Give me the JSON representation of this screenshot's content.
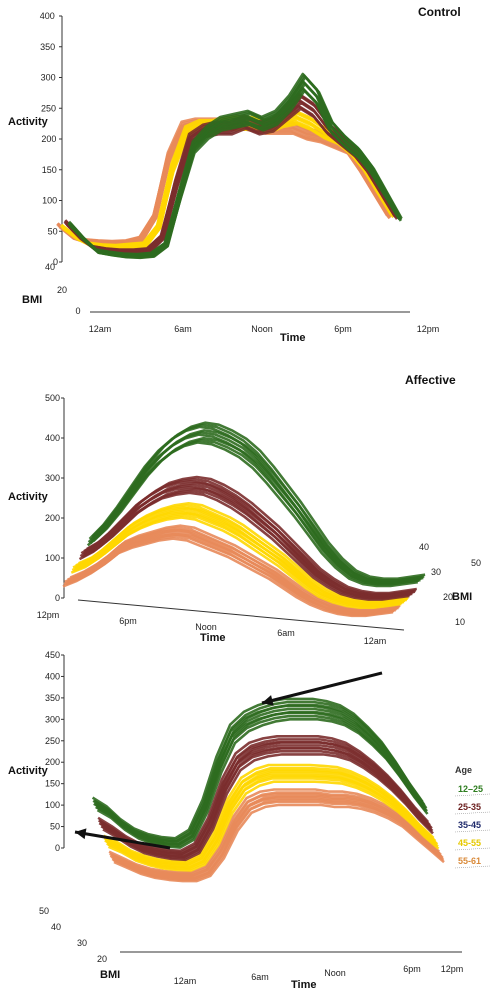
{
  "chart_data": [
    {
      "type": "line",
      "title": "Control",
      "ylabel": "Activity",
      "xlabel": "Time",
      "zlabel": "BMI",
      "ylim": [
        0,
        400
      ],
      "yticks": [
        "0",
        "50",
        "100",
        "150",
        "200",
        "250",
        "300",
        "350",
        "400"
      ],
      "xticks": [
        "12am",
        "6am",
        "Noon",
        "6pm",
        "12pm"
      ],
      "zticks": [
        "0",
        "20",
        "40"
      ],
      "x": [
        0,
        1,
        2,
        3,
        4,
        5,
        6,
        7,
        8,
        9,
        10,
        11,
        12,
        13,
        14,
        15,
        16,
        17,
        18,
        19,
        20,
        21,
        22,
        23,
        24
      ],
      "series": [
        {
          "color": "#e8895a",
          "values": [
            35,
            15,
            8,
            6,
            5,
            6,
            12,
            50,
            150,
            200,
            205,
            205,
            205,
            210,
            205,
            200,
            200,
            200,
            190,
            185,
            175,
            165,
            130,
            90,
            50
          ]
        },
        {
          "color": "#ffd700",
          "values": [
            40,
            22,
            10,
            7,
            6,
            8,
            10,
            40,
            140,
            200,
            210,
            210,
            215,
            215,
            215,
            210,
            220,
            225,
            215,
            200,
            190,
            170,
            140,
            100,
            60
          ]
        },
        {
          "color": "#7b2e2e",
          "values": [
            55,
            30,
            12,
            8,
            6,
            6,
            8,
            30,
            120,
            195,
            210,
            215,
            215,
            225,
            215,
            220,
            240,
            260,
            245,
            215,
            195,
            175,
            145,
            105,
            65
          ]
        },
        {
          "color": "#2e6b1f",
          "values": [
            60,
            35,
            14,
            10,
            7,
            6,
            8,
            25,
            110,
            190,
            215,
            230,
            235,
            240,
            230,
            240,
            265,
            300,
            275,
            225,
            200,
            180,
            150,
            110,
            70
          ]
        }
      ]
    },
    {
      "type": "line",
      "title": "Affective",
      "ylabel": "Activity",
      "xlabel": "Time",
      "zlabel": "BMI",
      "ylim": [
        0,
        500
      ],
      "yticks": [
        "0",
        "100",
        "200",
        "300",
        "400",
        "500"
      ],
      "xticks": [
        "12pm",
        "6pm",
        "Noon",
        "6am",
        "12am"
      ],
      "zticks": [
        "10",
        "20",
        "30",
        "40",
        "50"
      ],
      "x": [
        0,
        1,
        2,
        3,
        4,
        5,
        6,
        7,
        8,
        9,
        10,
        11,
        12,
        13,
        14,
        15,
        16,
        17,
        18,
        19,
        20,
        21,
        22,
        23,
        24
      ],
      "series": [
        {
          "color": "#e8895a",
          "values": [
            100,
            115,
            135,
            160,
            190,
            205,
            215,
            225,
            230,
            225,
            210,
            195,
            180,
            160,
            140,
            120,
            95,
            70,
            50,
            35,
            25,
            20,
            20,
            25,
            30
          ]
        },
        {
          "color": "#ffd700",
          "values": [
            120,
            135,
            160,
            190,
            220,
            240,
            255,
            265,
            270,
            265,
            250,
            235,
            215,
            190,
            165,
            140,
            110,
            80,
            55,
            40,
            30,
            25,
            25,
            30,
            35
          ]
        },
        {
          "color": "#7b2e2e",
          "values": [
            140,
            160,
            190,
            225,
            260,
            285,
            305,
            315,
            320,
            315,
            300,
            280,
            255,
            225,
            195,
            160,
            125,
            90,
            65,
            45,
            35,
            30,
            30,
            35,
            40
          ]
        },
        {
          "color": "#2e6b1f",
          "values": [
            160,
            195,
            240,
            290,
            340,
            380,
            410,
            430,
            440,
            435,
            420,
            400,
            370,
            330,
            285,
            240,
            190,
            140,
            100,
            70,
            55,
            50,
            50,
            55,
            60
          ]
        }
      ]
    },
    {
      "type": "line",
      "ylabel": "Activity",
      "xlabel": "Time",
      "zlabel": "BMI",
      "ylim": [
        0,
        450
      ],
      "yticks": [
        "0",
        "50",
        "100",
        "150",
        "200",
        "250",
        "300",
        "350",
        "400",
        "450"
      ],
      "xticks": [
        "12am",
        "6am",
        "Noon",
        "6pm",
        "12pm"
      ],
      "zticks": [
        "20",
        "30",
        "40",
        "50"
      ],
      "x": [
        0,
        1,
        2,
        3,
        4,
        5,
        6,
        7,
        8,
        9,
        10,
        11,
        12,
        13,
        14,
        15,
        16,
        17,
        18,
        19,
        20,
        21,
        22,
        23,
        24
      ],
      "series": [
        {
          "color": "#e8895a",
          "values": [
            60,
            45,
            30,
            20,
            15,
            12,
            12,
            25,
            70,
            140,
            185,
            200,
            205,
            205,
            205,
            205,
            200,
            200,
            195,
            185,
            170,
            150,
            120,
            90,
            60
          ]
        },
        {
          "color": "#ffd700",
          "values": [
            75,
            60,
            40,
            28,
            20,
            16,
            15,
            30,
            80,
            160,
            210,
            230,
            240,
            240,
            240,
            240,
            238,
            235,
            225,
            210,
            190,
            165,
            135,
            100,
            70
          ]
        },
        {
          "color": "#7b2e2e",
          "values": [
            95,
            75,
            52,
            35,
            26,
            20,
            18,
            35,
            95,
            185,
            245,
            270,
            280,
            285,
            285,
            285,
            285,
            280,
            270,
            250,
            225,
            195,
            160,
            120,
            85
          ]
        },
        {
          "color": "#2e6b1f",
          "values": [
            120,
            100,
            70,
            48,
            35,
            28,
            25,
            45,
            115,
            215,
            290,
            320,
            335,
            345,
            350,
            350,
            350,
            345,
            335,
            315,
            285,
            250,
            205,
            155,
            110
          ]
        }
      ],
      "legend": {
        "title": "Age",
        "items": [
          {
            "label": "12–25",
            "color": "#2e7d1f"
          },
          {
            "label": "25-35",
            "color": "#6b1f1f"
          },
          {
            "label": "35-45",
            "color": "#1f2a6b"
          },
          {
            "label": "45-55",
            "color": "#e6c800"
          },
          {
            "label": "55-61",
            "color": "#d98a3a"
          }
        ],
        "position": "right"
      }
    }
  ]
}
